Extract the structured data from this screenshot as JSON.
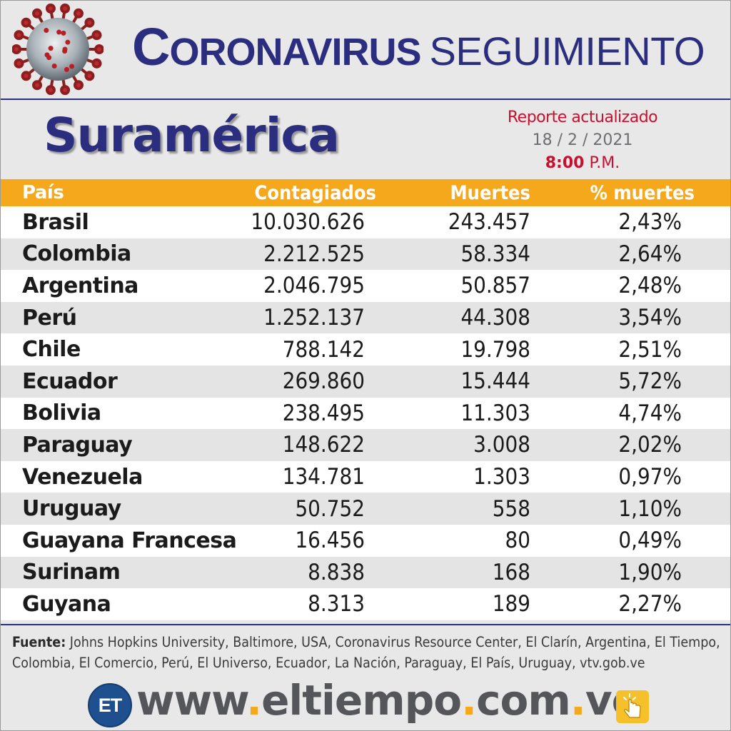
{
  "header": {
    "title_main_initial": "C",
    "title_main_rest": "ORONAVIRUS",
    "title_sub": "SEGUIMIENTO",
    "virus_icon": "coronavirus-icon"
  },
  "subheader": {
    "region": "Suramérica",
    "report_label": "Reporte actualizado",
    "report_date": "18 / 2 / 2021",
    "report_time": "8:00",
    "report_ampm": "P.M."
  },
  "table": {
    "columns": [
      "País",
      "Contagiados",
      "Muertes",
      "% muertes"
    ],
    "rows": [
      {
        "country": "Brasil",
        "cases": "10.030.626",
        "deaths": "243.457",
        "pct": "2,43%"
      },
      {
        "country": "Colombia",
        "cases": "2.212.525",
        "deaths": "58.334",
        "pct": "2,64%"
      },
      {
        "country": "Argentina",
        "cases": "2.046.795",
        "deaths": "50.857",
        "pct": "2,48%"
      },
      {
        "country": "Perú",
        "cases": "1.252.137",
        "deaths": "44.308",
        "pct": "3,54%"
      },
      {
        "country": "Chile",
        "cases": "788.142",
        "deaths": "19.798",
        "pct": "2,51%"
      },
      {
        "country": "Ecuador",
        "cases": "269.860",
        "deaths": "15.444",
        "pct": "5,72%"
      },
      {
        "country": "Bolivia",
        "cases": "238.495",
        "deaths": "11.303",
        "pct": "4,74%"
      },
      {
        "country": "Paraguay",
        "cases": "148.622",
        "deaths": "3.008",
        "pct": "2,02%"
      },
      {
        "country": "Venezuela",
        "cases": "134.781",
        "deaths": "1.303",
        "pct": "0,97%"
      },
      {
        "country": "Uruguay",
        "cases": "50.752",
        "deaths": "558",
        "pct": "1,10%"
      },
      {
        "country": "Guayana Francesa",
        "cases": "16.456",
        "deaths": "80",
        "pct": "0,49%"
      },
      {
        "country": "Surinam",
        "cases": "8.838",
        "deaths": "168",
        "pct": "1,90%"
      },
      {
        "country": "Guyana",
        "cases": "8.313",
        "deaths": "189",
        "pct": "2,27%"
      }
    ]
  },
  "source": {
    "label": "Fuente:",
    "text": "Johns Hopkins University, Baltimore, USA, Coronavirus Resource Center,  El Clarín, Argentina, El Tiempo, Colombia, El Comercio, Perú, El Universo, Ecuador, La Nación, Paraguay, El País, Uruguay, vtv.gob.ve"
  },
  "footer": {
    "logo_text": "ET",
    "url_parts": [
      "www",
      ".",
      "eltiempo",
      ".",
      "com",
      ".",
      "ve"
    ],
    "tap_icon": "tap-finger-icon"
  },
  "colors": {
    "navy": "#2b2e7e",
    "orange": "#f6a81c",
    "red": "#c8102e"
  }
}
